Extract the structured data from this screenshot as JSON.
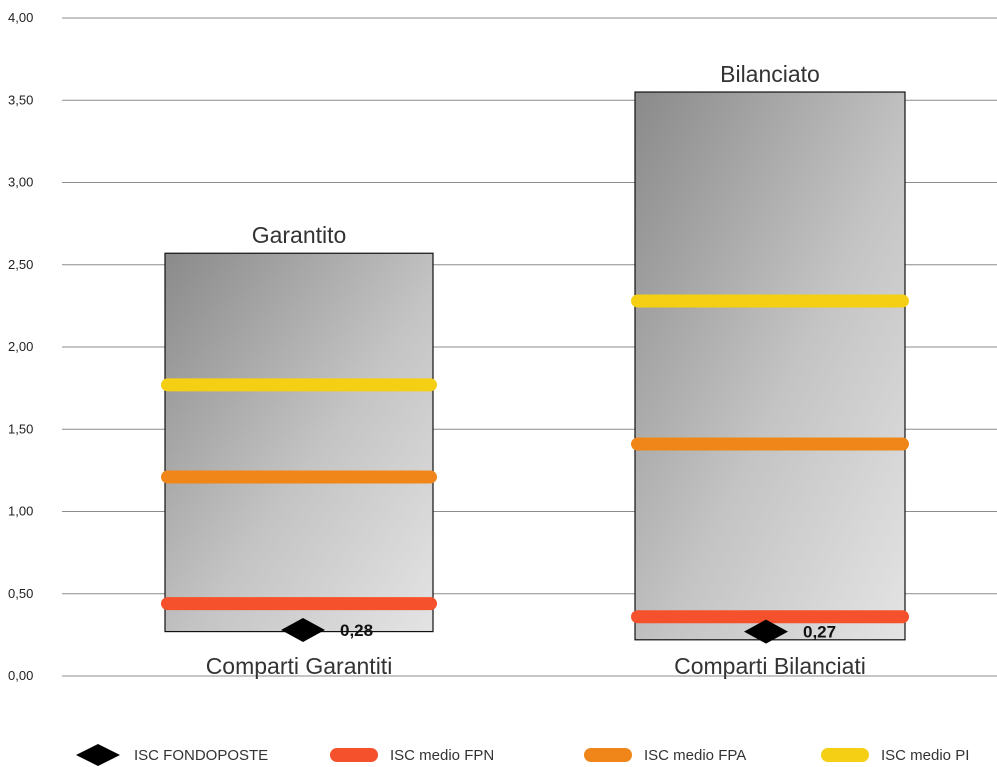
{
  "chart_data": {
    "type": "bar",
    "ylim": [
      0,
      4
    ],
    "yticks": [
      "0,00",
      "0,50",
      "1,00",
      "1,50",
      "2,00",
      "2,50",
      "3,00",
      "3,50",
      "4,00"
    ],
    "ytick_values": [
      0,
      0.5,
      1,
      1.5,
      2,
      2.5,
      3,
      3.5,
      4
    ],
    "grid": true,
    "legend_position": "bottom",
    "categories": [
      "Comparti Garantiti",
      "Comparti Bilanciati"
    ],
    "range_boxes": [
      {
        "name": "Garantito",
        "low": 0.27,
        "high": 2.57
      },
      {
        "name": "Bilanciato",
        "low": 0.22,
        "high": 3.55
      }
    ],
    "series": [
      {
        "name": "ISC FONDOPOSTE",
        "marker": "diamond",
        "color": "#000000",
        "values": [
          0.28,
          0.27
        ],
        "value_labels": [
          "0,28",
          "0,27"
        ]
      },
      {
        "name": "ISC medio FPN",
        "marker": "line",
        "color": "#f4512c",
        "values": [
          0.44,
          0.36
        ]
      },
      {
        "name": "ISC medio FPA",
        "marker": "line",
        "color": "#f0861a",
        "values": [
          1.21,
          1.41
        ]
      },
      {
        "name": "ISC medio PI",
        "marker": "line",
        "color": "#f5cf14",
        "values": [
          1.77,
          2.28
        ]
      }
    ]
  }
}
